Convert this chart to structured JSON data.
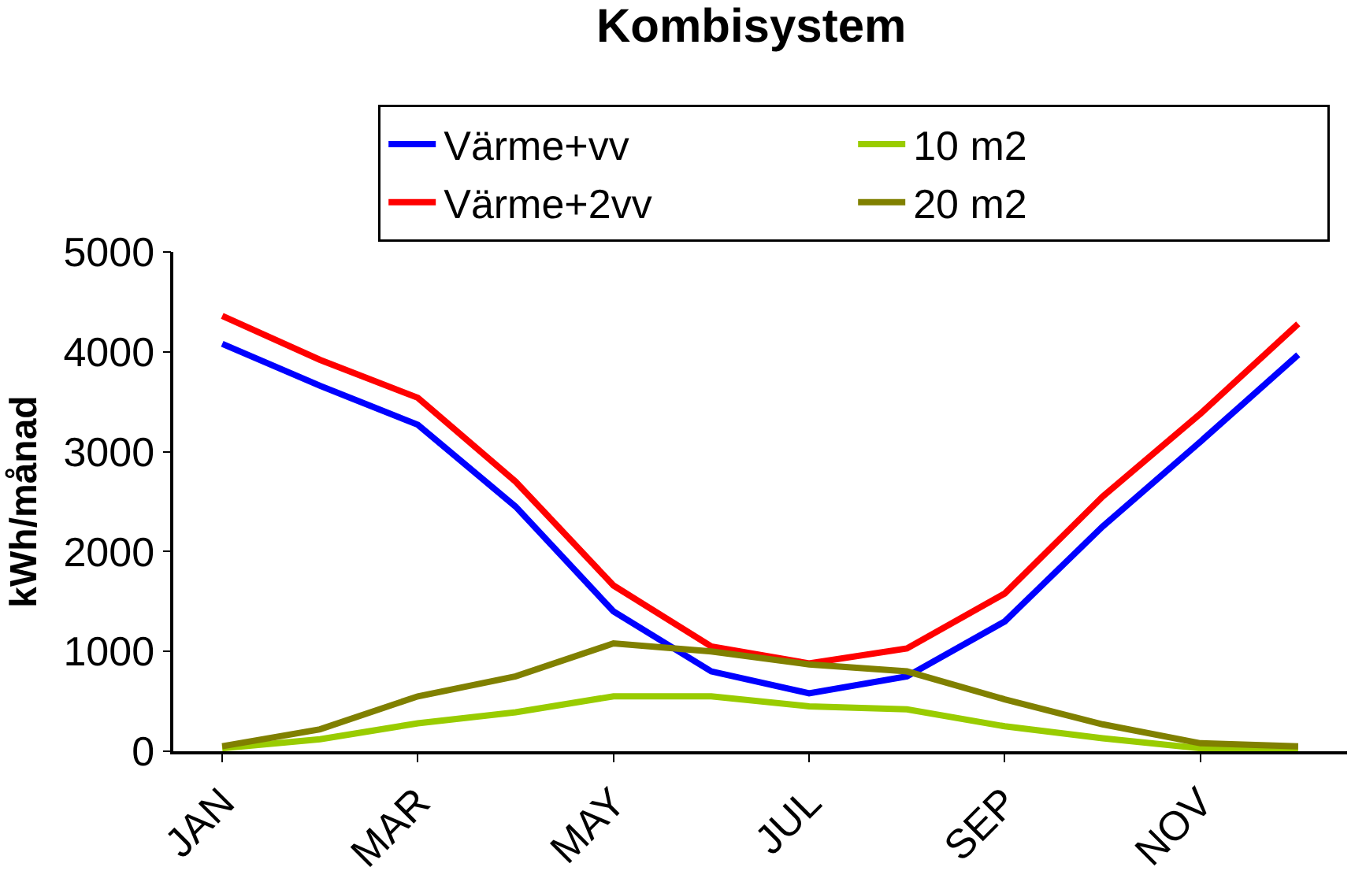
{
  "chart_data": {
    "type": "line",
    "title": "Kombisystem",
    "ylabel": "kWh/månad",
    "categories": [
      "JAN",
      null,
      "MAR",
      null,
      "MAY",
      null,
      "JUL",
      null,
      "SEP",
      null,
      "NOV",
      null
    ],
    "ylim": [
      0,
      5000
    ],
    "yticks": [
      0,
      1000,
      2000,
      3000,
      4000,
      5000
    ],
    "grid": false,
    "legend": "top",
    "marker": "none",
    "line_style": "solid",
    "series": [
      {
        "name": "Värme+vv",
        "color": "#0000ff",
        "values": [
          4080,
          3660,
          3270,
          2450,
          1400,
          800,
          580,
          750,
          1300,
          2250,
          3100,
          3970
        ]
      },
      {
        "name": "10 m2",
        "color": "#99cc00",
        "values": [
          30,
          120,
          280,
          390,
          550,
          550,
          450,
          420,
          250,
          130,
          30,
          30
        ]
      },
      {
        "name": "Värme+2vv",
        "color": "#ff0000",
        "values": [
          4360,
          3920,
          3540,
          2700,
          1660,
          1050,
          880,
          1030,
          1580,
          2550,
          3380,
          4280
        ]
      },
      {
        "name": "20 m2",
        "color": "#808000",
        "values": [
          50,
          220,
          550,
          750,
          1080,
          1000,
          870,
          800,
          520,
          270,
          80,
          50
        ]
      }
    ]
  }
}
